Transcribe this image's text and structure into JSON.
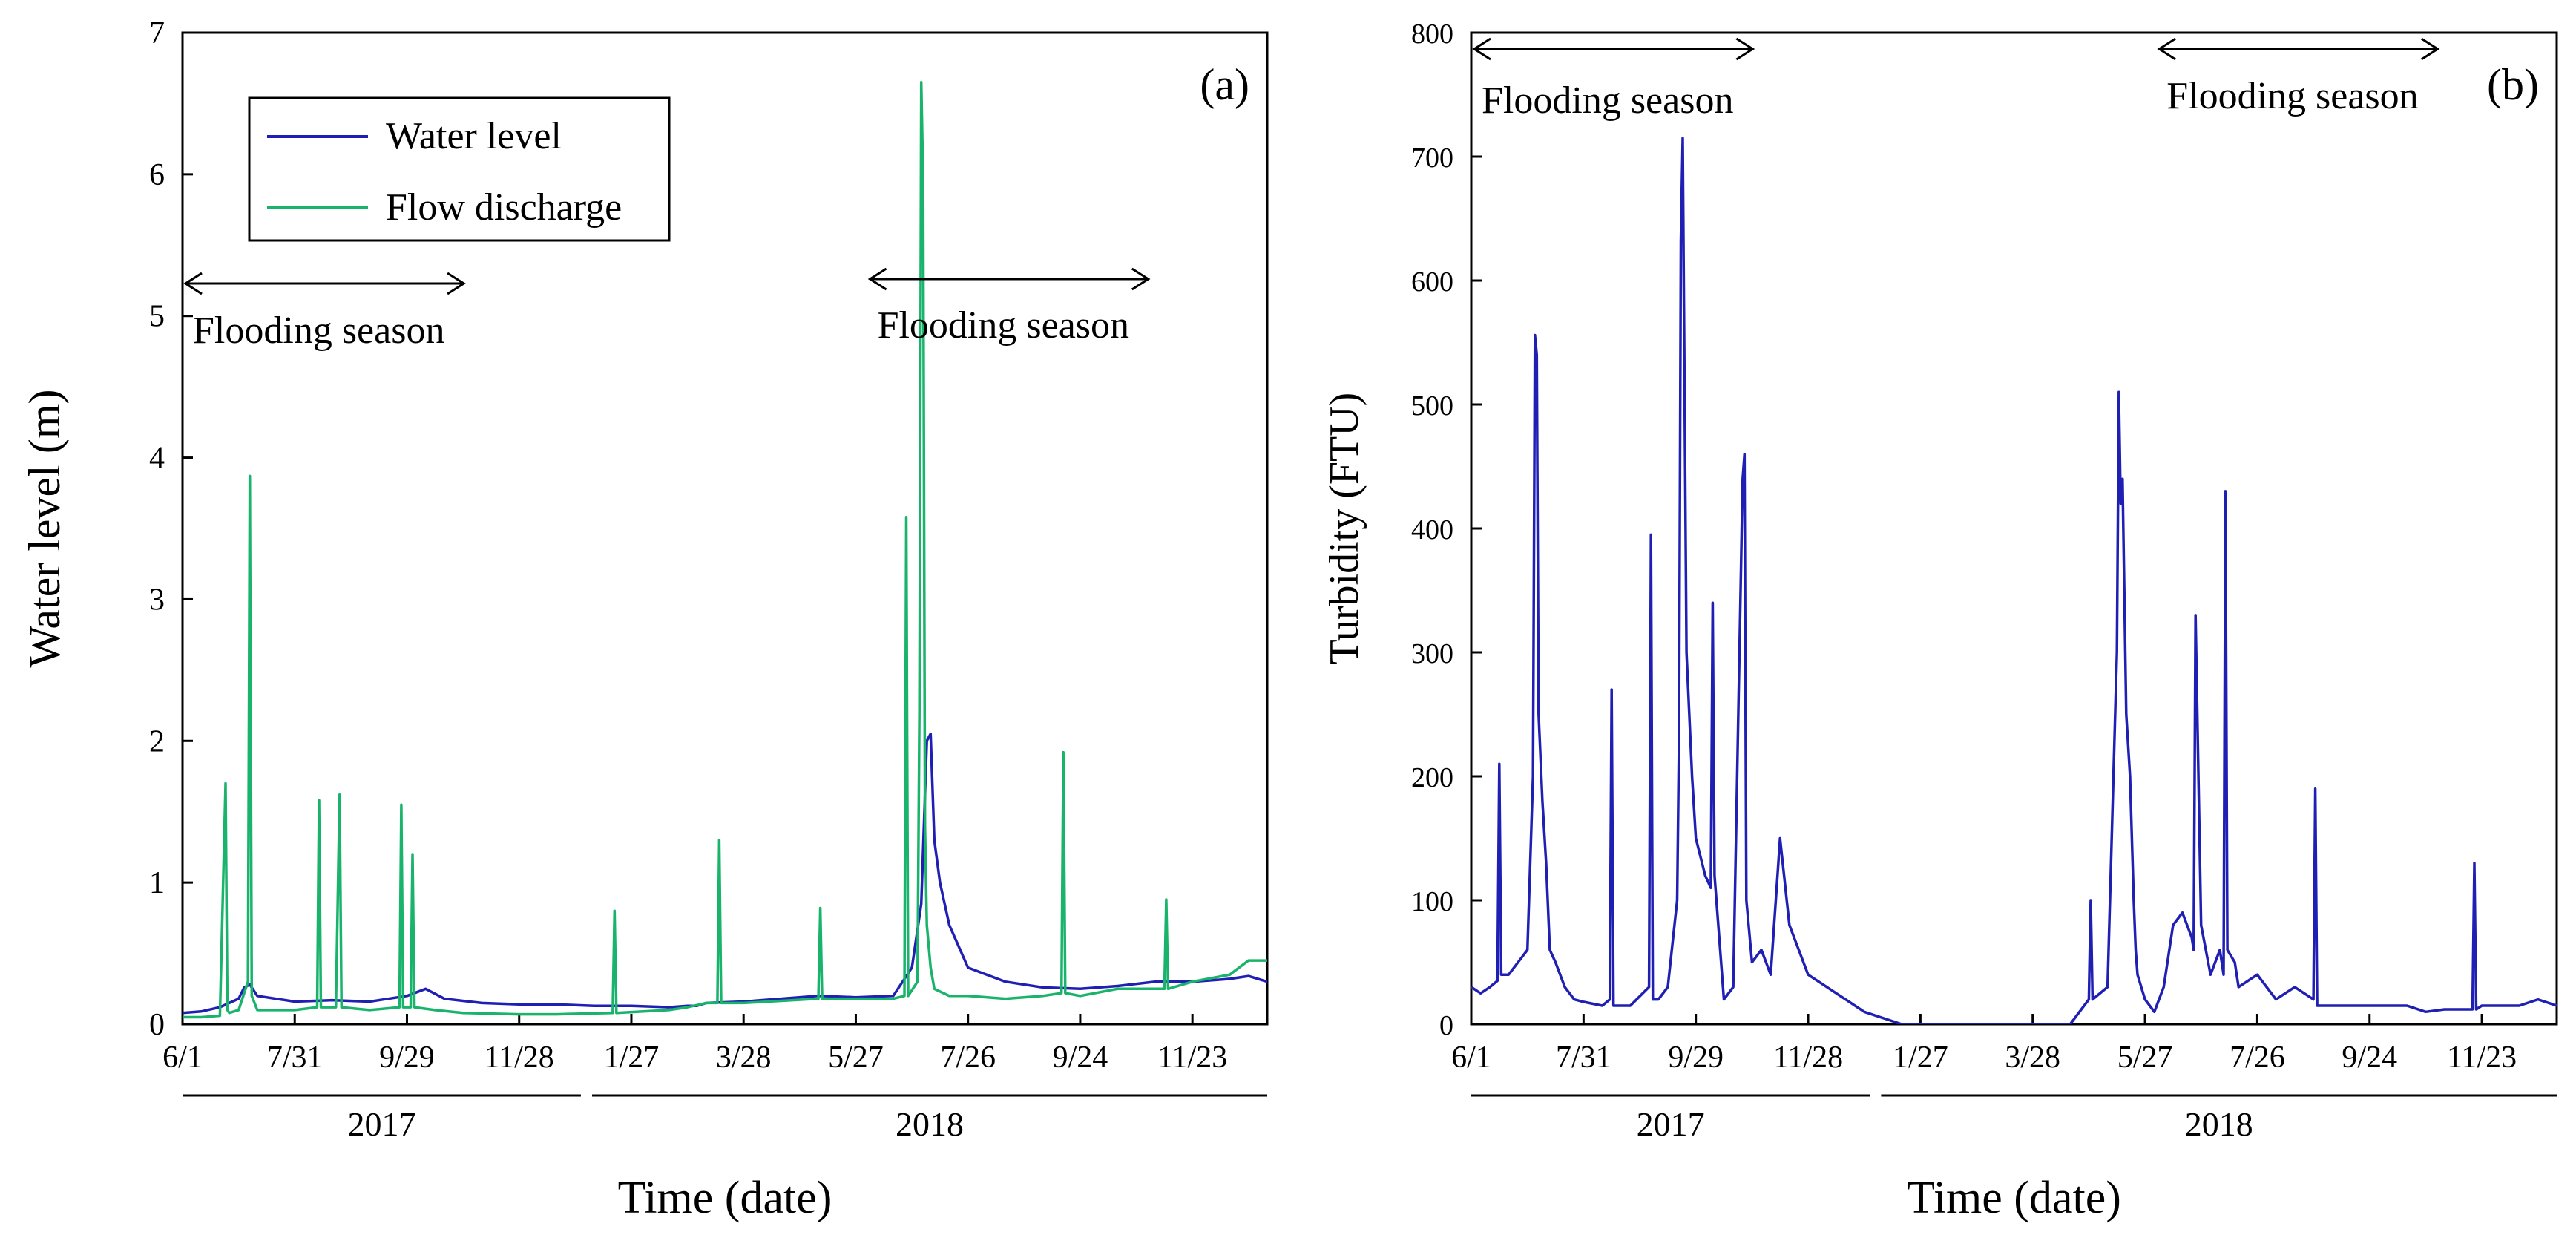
{
  "colors": {
    "water_level": "#1f1fb4",
    "flow_discharge": "#19b36b",
    "axis": "#000000"
  },
  "chart_data": [
    {
      "type": "line",
      "panel_label": "(a)",
      "title": "",
      "xlabel": "Time (date)",
      "ylabel": "Water level (m)",
      "ylim": [
        0,
        7
      ],
      "y_ticks": [
        "0",
        "1",
        "2",
        "3",
        "4",
        "5",
        "6",
        "7"
      ],
      "x_range_days": [
        0,
        580
      ],
      "x_ticks": [
        {
          "label": "6/1",
          "day": 0
        },
        {
          "label": "7/31",
          "day": 60
        },
        {
          "label": "9/29",
          "day": 120
        },
        {
          "label": "11/28",
          "day": 180
        },
        {
          "label": "1/27",
          "day": 240
        },
        {
          "label": "3/28",
          "day": 300
        },
        {
          "label": "5/27",
          "day": 360
        },
        {
          "label": "7/26",
          "day": 420
        },
        {
          "label": "9/24",
          "day": 480
        },
        {
          "label": "11/23",
          "day": 540
        }
      ],
      "years": [
        {
          "label": "2017",
          "start_day": 0,
          "end_day": 213
        },
        {
          "label": "2018",
          "start_day": 219,
          "end_day": 580
        }
      ],
      "legend": {
        "position": "top-left",
        "entries": [
          "Water level",
          "Flow discharge"
        ]
      },
      "annotations": [
        {
          "text": "Flooding season",
          "start_day": 0,
          "end_day": 152
        },
        {
          "text": "Flooding season",
          "start_day": 366,
          "end_day": 518
        }
      ],
      "series": [
        {
          "name": "Water level",
          "x": [
            0,
            10,
            20,
            30,
            33,
            36,
            40,
            60,
            80,
            100,
            120,
            130,
            140,
            160,
            180,
            200,
            220,
            240,
            260,
            270,
            275,
            280,
            300,
            320,
            340,
            360,
            380,
            390,
            395,
            398,
            400,
            402,
            405,
            410,
            420,
            440,
            460,
            480,
            500,
            520,
            540,
            560,
            570,
            580
          ],
          "values": [
            0.08,
            0.09,
            0.12,
            0.18,
            0.26,
            0.28,
            0.2,
            0.16,
            0.17,
            0.16,
            0.2,
            0.25,
            0.18,
            0.15,
            0.14,
            0.14,
            0.13,
            0.13,
            0.12,
            0.13,
            0.13,
            0.15,
            0.16,
            0.18,
            0.2,
            0.19,
            0.2,
            0.4,
            0.85,
            2.0,
            2.05,
            1.3,
            1.0,
            0.7,
            0.4,
            0.3,
            0.26,
            0.25,
            0.27,
            0.3,
            0.3,
            0.32,
            0.34,
            0.3
          ]
        },
        {
          "name": "Flow discharge",
          "x": [
            0,
            10,
            20,
            23,
            24,
            25,
            30,
            35,
            36,
            37,
            40,
            60,
            72,
            73,
            74,
            82,
            84,
            85,
            100,
            116,
            117,
            118,
            122,
            123,
            124,
            135,
            150,
            180,
            200,
            230,
            231,
            232,
            260,
            270,
            280,
            286,
            287,
            288,
            300,
            340,
            341,
            342,
            380,
            386,
            387,
            388,
            393,
            394,
            395,
            396,
            397,
            398,
            400,
            402,
            410,
            420,
            440,
            460,
            470,
            471,
            472,
            480,
            500,
            520,
            525,
            526,
            527,
            540,
            560,
            570,
            580
          ],
          "values": [
            0.05,
            0.05,
            0.06,
            1.7,
            0.1,
            0.08,
            0.1,
            0.3,
            3.87,
            0.2,
            0.1,
            0.1,
            0.12,
            1.58,
            0.12,
            0.12,
            1.62,
            0.12,
            0.1,
            0.12,
            1.55,
            0.12,
            0.12,
            1.2,
            0.12,
            0.1,
            0.08,
            0.07,
            0.07,
            0.08,
            0.8,
            0.08,
            0.1,
            0.12,
            0.15,
            0.15,
            1.3,
            0.15,
            0.15,
            0.18,
            0.82,
            0.18,
            0.18,
            0.2,
            3.58,
            0.2,
            0.3,
            2.2,
            6.65,
            5.95,
            1.4,
            0.7,
            0.4,
            0.25,
            0.2,
            0.2,
            0.18,
            0.2,
            0.22,
            1.92,
            0.22,
            0.2,
            0.25,
            0.25,
            0.25,
            0.88,
            0.25,
            0.3,
            0.35,
            0.45,
            0.45
          ]
        }
      ]
    },
    {
      "type": "line",
      "panel_label": "(b)",
      "title": "",
      "xlabel": "Time (date)",
      "ylabel": "Turbidity (FTU)",
      "ylim": [
        0,
        800
      ],
      "y_ticks": [
        "0",
        "100",
        "200",
        "300",
        "400",
        "500",
        "600",
        "700",
        "800"
      ],
      "x_range_days": [
        0,
        580
      ],
      "x_ticks": [
        {
          "label": "6/1",
          "day": 0
        },
        {
          "label": "7/31",
          "day": 60
        },
        {
          "label": "9/29",
          "day": 120
        },
        {
          "label": "11/28",
          "day": 180
        },
        {
          "label": "1/27",
          "day": 240
        },
        {
          "label": "3/28",
          "day": 300
        },
        {
          "label": "5/27",
          "day": 360
        },
        {
          "label": "7/26",
          "day": 420
        },
        {
          "label": "9/24",
          "day": 480
        },
        {
          "label": "11/23",
          "day": 540
        }
      ],
      "years": [
        {
          "label": "2017",
          "start_day": 0,
          "end_day": 213
        },
        {
          "label": "2018",
          "start_day": 219,
          "end_day": 580
        }
      ],
      "annotations": [
        {
          "text": "Flooding season",
          "start_day": 0,
          "end_day": 152
        },
        {
          "text": "Flooding season",
          "start_day": 366,
          "end_day": 518
        }
      ],
      "series": [
        {
          "name": "Turbidity",
          "x": [
            0,
            5,
            10,
            14,
            15,
            16,
            20,
            25,
            30,
            33,
            34,
            35,
            36,
            38,
            40,
            42,
            45,
            50,
            55,
            60,
            70,
            74,
            75,
            76,
            85,
            95,
            96,
            97,
            100,
            105,
            110,
            111,
            112,
            113,
            115,
            118,
            120,
            125,
            128,
            129,
            130,
            135,
            140,
            145,
            146,
            147,
            150,
            155,
            160,
            165,
            170,
            175,
            180,
            190,
            200,
            210,
            230,
            260,
            300,
            320,
            330,
            331,
            332,
            340,
            345,
            346,
            347,
            348,
            350,
            352,
            354,
            355,
            356,
            358,
            360,
            365,
            370,
            375,
            380,
            385,
            386,
            387,
            390,
            395,
            400,
            402,
            403,
            404,
            408,
            410,
            420,
            430,
            440,
            450,
            451,
            452,
            460,
            470,
            480,
            490,
            500,
            510,
            520,
            530,
            535,
            536,
            537,
            540,
            550,
            560,
            570,
            580
          ],
          "values": [
            30,
            25,
            30,
            35,
            210,
            40,
            40,
            50,
            60,
            200,
            556,
            540,
            250,
            180,
            130,
            60,
            50,
            30,
            20,
            18,
            15,
            20,
            270,
            15,
            15,
            30,
            395,
            20,
            20,
            30,
            100,
            230,
            632,
            715,
            300,
            200,
            150,
            120,
            110,
            340,
            120,
            20,
            30,
            440,
            460,
            100,
            50,
            60,
            40,
            150,
            80,
            60,
            40,
            30,
            20,
            10,
            0,
            0,
            0,
            0,
            20,
            100,
            20,
            30,
            300,
            510,
            420,
            440,
            250,
            200,
            100,
            60,
            40,
            30,
            20,
            10,
            30,
            80,
            90,
            70,
            60,
            330,
            80,
            40,
            60,
            40,
            430,
            60,
            50,
            30,
            40,
            20,
            30,
            20,
            190,
            15,
            15,
            15,
            15,
            15,
            15,
            10,
            12,
            12,
            12,
            130,
            12,
            15,
            15,
            15,
            20,
            15
          ]
        }
      ]
    }
  ]
}
